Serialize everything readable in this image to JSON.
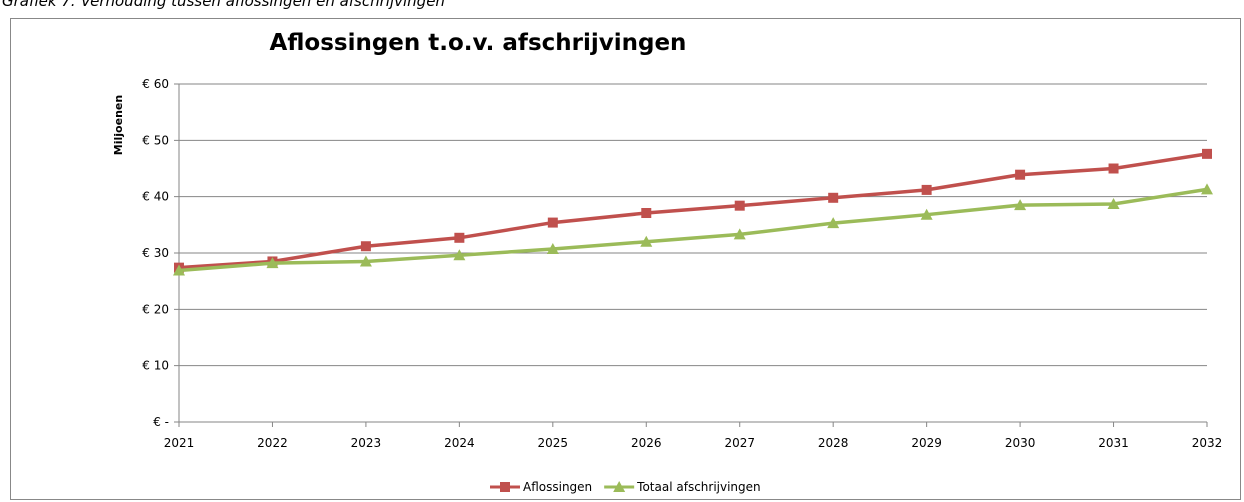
{
  "caption": "Grafiek 7: Verhouding tussen aflossingen en afschrijvingen",
  "chart_data": {
    "type": "line",
    "title": "Aflossingen t.o.v. afschrijvingen",
    "y_label": "Miljoenen",
    "x": [
      2021,
      2022,
      2023,
      2024,
      2025,
      2026,
      2027,
      2028,
      2029,
      2030,
      2031,
      2032
    ],
    "xlim": [
      2021,
      2032
    ],
    "xticks": [
      2021,
      2022,
      2023,
      2024,
      2025,
      2026,
      2027,
      2028,
      2029,
      2030,
      2031,
      2032
    ],
    "ylim": [
      0,
      60
    ],
    "yticks": [
      {
        "value": 0,
        "label": "€ -"
      },
      {
        "value": 10,
        "label": "€ 10"
      },
      {
        "value": 20,
        "label": "€ 20"
      },
      {
        "value": 30,
        "label": "€ 30"
      },
      {
        "value": 40,
        "label": "€ 40"
      },
      {
        "value": 50,
        "label": "€ 50"
      },
      {
        "value": 60,
        "label": "€ 60"
      }
    ],
    "grid": true,
    "legend": "bottom",
    "series": [
      {
        "name": "Aflossingen",
        "color": "#c0504d",
        "marker": "square",
        "values": [
          27.4,
          28.5,
          31.2,
          32.7,
          35.4,
          37.1,
          38.4,
          39.8,
          41.2,
          43.9,
          45.0,
          47.6
        ]
      },
      {
        "name": "Totaal afschrijvingen",
        "color": "#9bbb59",
        "marker": "triangle",
        "values": [
          26.9,
          28.2,
          28.5,
          29.6,
          30.7,
          32.0,
          33.3,
          35.3,
          36.8,
          38.5,
          38.7,
          41.3
        ]
      }
    ]
  }
}
